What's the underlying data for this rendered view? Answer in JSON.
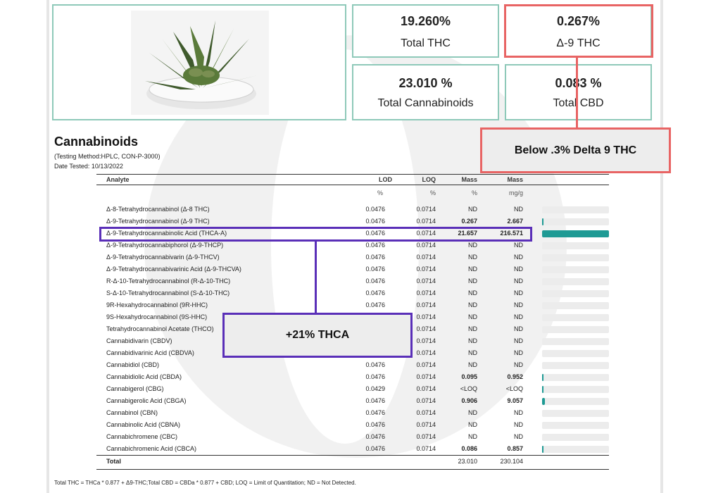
{
  "metrics": [
    {
      "value": "19.260%",
      "label": "Total THC"
    },
    {
      "value": "0.267%",
      "label": "Δ-9 THC"
    },
    {
      "value": "23.010 %",
      "label": "Total Cannabinoids"
    },
    {
      "value": "0.083 %",
      "label": "Total CBD"
    }
  ],
  "annotations": {
    "delta9_callout": "Below .3% Delta 9 THC",
    "thca_callout": "+21% THCA"
  },
  "colors": {
    "card_border": "#8ec9b9",
    "callout_red": "#e86464",
    "callout_purple": "#5a2fb8",
    "bar_fill": "#1e9a94"
  },
  "cannabinoids": {
    "title": "Cannabinoids",
    "method": "(Testing Method:HPLC, CON-P-3000)",
    "date": "Date Tested: 10/13/2022",
    "headers": [
      "Analyte",
      "LOD",
      "LOQ",
      "Mass",
      "Mass"
    ],
    "units": [
      "%",
      "%",
      "%",
      "mg/g"
    ],
    "rows": [
      {
        "name": "Δ-8-Tetrahydrocannabinol (Δ-8 THC)",
        "lod": "0.0476",
        "loq": "0.0714",
        "pct": "ND",
        "mg": "ND",
        "level": 0
      },
      {
        "name": "Δ-9-Tetrahydrocannabinol (Δ-9 THC)",
        "lod": "0.0476",
        "loq": "0.0714",
        "pct": "0.267",
        "mg": "2.667",
        "level": 0.012
      },
      {
        "name": "Δ-9-Tetrahydrocannabinolic Acid (THCA-A)",
        "lod": "0.0476",
        "loq": "0.0714",
        "pct": "21.657",
        "mg": "216.571",
        "level": 1
      },
      {
        "name": "Δ-9-Tetrahydrocannabiphorol (Δ-9-THCP)",
        "lod": "0.0476",
        "loq": "0.0714",
        "pct": "ND",
        "mg": "ND",
        "level": 0
      },
      {
        "name": "Δ-9-Tetrahydrocannabivarin (Δ-9-THCV)",
        "lod": "0.0476",
        "loq": "0.0714",
        "pct": "ND",
        "mg": "ND",
        "level": 0
      },
      {
        "name": "Δ-9-Tetrahydrocannabivarinic Acid (Δ-9-THCVA)",
        "lod": "0.0476",
        "loq": "0.0714",
        "pct": "ND",
        "mg": "ND",
        "level": 0
      },
      {
        "name": "R-Δ-10-Tetrahydrocannabinol (R-Δ-10-THC)",
        "lod": "0.0476",
        "loq": "0.0714",
        "pct": "ND",
        "mg": "ND",
        "level": 0
      },
      {
        "name": "S-Δ-10-Tetrahydrocannabinol (S-Δ-10-THC)",
        "lod": "0.0476",
        "loq": "0.0714",
        "pct": "ND",
        "mg": "ND",
        "level": 0
      },
      {
        "name": "9R-Hexahydrocannabinol (9R-HHC)",
        "lod": "0.0476",
        "loq": "0.0714",
        "pct": "ND",
        "mg": "ND",
        "level": 0
      },
      {
        "name": "9S-Hexahydrocannabinol (9S-HHC)",
        "lod": "",
        "loq": "0.0714",
        "pct": "ND",
        "mg": "ND",
        "level": 0
      },
      {
        "name": "Tetrahydrocannabinol Acetate (THCO)",
        "lod": "",
        "loq": "0.0714",
        "pct": "ND",
        "mg": "ND",
        "level": 0
      },
      {
        "name": "Cannabidivarin (CBDV)",
        "lod": "",
        "loq": "0.0714",
        "pct": "ND",
        "mg": "ND",
        "level": 0
      },
      {
        "name": "Cannabidivarinic Acid (CBDVA)",
        "lod": "",
        "loq": "0.0714",
        "pct": "ND",
        "mg": "ND",
        "level": 0
      },
      {
        "name": "Cannabidiol (CBD)",
        "lod": "0.0476",
        "loq": "0.0714",
        "pct": "ND",
        "mg": "ND",
        "level": 0
      },
      {
        "name": "Cannabidiolic Acid (CBDA)",
        "lod": "0.0476",
        "loq": "0.0714",
        "pct": "0.095",
        "mg": "0.952",
        "level": 0.004
      },
      {
        "name": "Cannabigerol (CBG)",
        "lod": "0.0429",
        "loq": "0.0714",
        "pct": "<LOQ",
        "mg": "<LOQ",
        "level": 0.002
      },
      {
        "name": "Cannabigerolic Acid (CBGA)",
        "lod": "0.0476",
        "loq": "0.0714",
        "pct": "0.906",
        "mg": "9.057",
        "level": 0.042
      },
      {
        "name": "Cannabinol (CBN)",
        "lod": "0.0476",
        "loq": "0.0714",
        "pct": "ND",
        "mg": "ND",
        "level": 0
      },
      {
        "name": "Cannabinolic Acid (CBNA)",
        "lod": "0.0476",
        "loq": "0.0714",
        "pct": "ND",
        "mg": "ND",
        "level": 0
      },
      {
        "name": "Cannabichromene (CBC)",
        "lod": "0.0476",
        "loq": "0.0714",
        "pct": "ND",
        "mg": "ND",
        "level": 0
      },
      {
        "name": "Cannabichromenic Acid (CBCA)",
        "lod": "0.0476",
        "loq": "0.0714",
        "pct": "0.086",
        "mg": "0.857",
        "level": 0.004
      }
    ],
    "total": {
      "label": "Total",
      "pct": "23.010",
      "mg": "230.104"
    }
  },
  "footnote": "Total THC = THCa * 0.877 + Δ9-THC;Total CBD = CBDa * 0.877 + CBD; LOQ = Limit of Quantitation; ND = Not Detected."
}
